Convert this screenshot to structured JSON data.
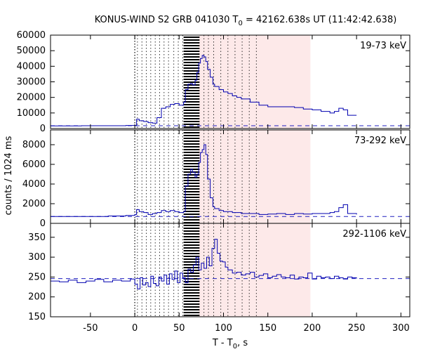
{
  "chart_data": {
    "type": "line",
    "title": "KONUS-WIND S2 GRB 041030 T",
    "title_sub": "0",
    "title_rest": " = 42162.638s UT (11:42:42.638)",
    "xlabel": "T - T",
    "xlabel_sub": "0",
    "xlabel_rest": ", s",
    "ylabel": "counts / 1024 ms",
    "xlim": [
      -95,
      310
    ],
    "xticks": [
      -50,
      0,
      50,
      100,
      150,
      200,
      250,
      300
    ],
    "xtick_labels": [
      "-50",
      "0",
      "50",
      "100",
      "150",
      "200",
      "250",
      "300"
    ],
    "grid": false,
    "colors": {
      "series": "#0000b0",
      "background_line": "#2020c0",
      "shade": "#fde9e9",
      "hatch": "#000000",
      "dotted_markers": "#000000"
    },
    "shaded_interval": [
      72,
      198
    ],
    "hatched_interval": [
      55,
      73
    ],
    "t0_line": 0,
    "dotted_markers_x": [
      3,
      8,
      13,
      18,
      23,
      28,
      33,
      38,
      44,
      49,
      54,
      78,
      83,
      89,
      97,
      105,
      113,
      121,
      129,
      137
    ],
    "panels": [
      {
        "label": "19-73 keV",
        "ylim": [
          0,
          60000
        ],
        "yticks": [
          0,
          10000,
          20000,
          30000,
          40000,
          50000,
          60000
        ],
        "ytick_labels": [
          "0",
          "10000",
          "20000",
          "30000",
          "40000",
          "50000",
          "60000"
        ],
        "background_level": 1800,
        "x": [
          -95,
          -60,
          -30,
          -10,
          0,
          2,
          5,
          10,
          15,
          20,
          25,
          30,
          35,
          40,
          45,
          50,
          55,
          57,
          60,
          63,
          65,
          68,
          70,
          72,
          74,
          76,
          78,
          80,
          82,
          85,
          88,
          90,
          95,
          100,
          105,
          110,
          115,
          120,
          130,
          140,
          150,
          160,
          170,
          180,
          190,
          200,
          210,
          220,
          225,
          230,
          235,
          240,
          250
        ],
        "y": [
          1700,
          1800,
          1800,
          2000,
          2000,
          6000,
          5000,
          4500,
          3800,
          3500,
          7000,
          13000,
          14000,
          15500,
          16000,
          15000,
          17000,
          25000,
          28500,
          29000,
          28000,
          31000,
          36000,
          42000,
          45000,
          47000,
          46000,
          43000,
          38000,
          33000,
          28500,
          27000,
          25000,
          23500,
          22500,
          21000,
          20000,
          19000,
          17000,
          15000,
          14000,
          14000,
          14000,
          13500,
          12500,
          12000,
          11000,
          10000,
          11000,
          13000,
          12000,
          8500,
          8500
        ]
      },
      {
        "label": "73-292 keV",
        "ylim": [
          0,
          9500
        ],
        "yticks": [
          0,
          2000,
          4000,
          6000,
          8000
        ],
        "ytick_labels": [
          "0",
          "2000",
          "4000",
          "6000",
          "8000"
        ],
        "background_level": 700,
        "x": [
          -95,
          -60,
          -30,
          -10,
          0,
          2,
          5,
          10,
          15,
          20,
          25,
          30,
          35,
          40,
          45,
          50,
          55,
          57,
          60,
          63,
          65,
          68,
          70,
          72,
          74,
          76,
          78,
          80,
          82,
          85,
          88,
          90,
          95,
          100,
          110,
          120,
          130,
          140,
          150,
          160,
          170,
          180,
          190,
          200,
          210,
          220,
          225,
          230,
          235,
          240,
          250
        ],
        "y": [
          700,
          700,
          750,
          800,
          900,
          1400,
          1200,
          1100,
          900,
          1000,
          1100,
          1300,
          1200,
          1300,
          1200,
          1100,
          1200,
          3800,
          5000,
          5500,
          5200,
          4700,
          5000,
          6200,
          7200,
          7500,
          8000,
          7000,
          4500,
          2600,
          1700,
          1500,
          1300,
          1200,
          1100,
          1000,
          1000,
          900,
          950,
          1000,
          900,
          1000,
          950,
          1000,
          1000,
          1100,
          1200,
          1600,
          1900,
          1000,
          900
        ]
      },
      {
        "label": "292-1106 keV",
        "ylim": [
          150,
          385
        ],
        "yticks": [
          150,
          200,
          250,
          300,
          350
        ],
        "ytick_labels": [
          "150",
          "200",
          "250",
          "300",
          "350"
        ],
        "background_level": 246,
        "x": [
          -95,
          -85,
          -75,
          -65,
          -55,
          -45,
          -35,
          -25,
          -15,
          -5,
          0,
          3,
          6,
          9,
          12,
          15,
          18,
          21,
          24,
          27,
          30,
          33,
          36,
          39,
          42,
          45,
          48,
          51,
          54,
          57,
          60,
          63,
          66,
          69,
          72,
          75,
          78,
          81,
          84,
          87,
          90,
          93,
          96,
          99,
          102,
          105,
          110,
          115,
          120,
          125,
          130,
          135,
          140,
          145,
          150,
          155,
          160,
          165,
          170,
          175,
          180,
          185,
          190,
          195,
          200,
          205,
          210,
          215,
          220,
          225,
          230,
          235,
          240,
          245,
          250
        ],
        "y": [
          240,
          238,
          242,
          236,
          240,
          244,
          238,
          242,
          240,
          245,
          232,
          220,
          248,
          230,
          236,
          226,
          252,
          234,
          228,
          250,
          240,
          255,
          232,
          258,
          244,
          265,
          236,
          260,
          248,
          236,
          270,
          262,
          280,
          300,
          268,
          285,
          272,
          300,
          278,
          322,
          345,
          310,
          290,
          288,
          275,
          268,
          260,
          262,
          255,
          258,
          262,
          250,
          254,
          258,
          248,
          252,
          256,
          250,
          248,
          255,
          245,
          250,
          248,
          260,
          245,
          252,
          248,
          250,
          246,
          252,
          248,
          245,
          250,
          248,
          246
        ]
      }
    ]
  }
}
